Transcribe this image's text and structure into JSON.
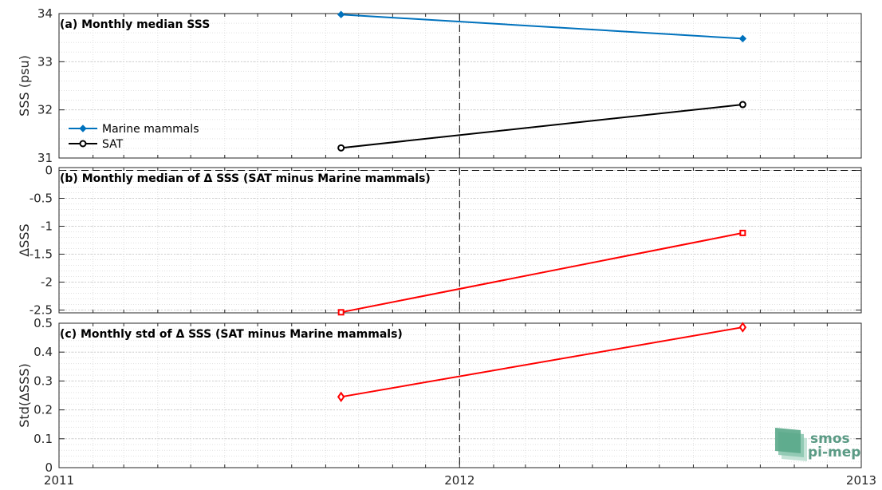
{
  "chart_data": [
    {
      "type": "line",
      "title": "(a) Monthly median SSS",
      "ylabel": "SSS (psu)",
      "ylim": [
        31,
        34
      ],
      "yticks": [
        31,
        32,
        33,
        34
      ],
      "ytick_labels": [
        "31",
        "32",
        "33",
        "34"
      ],
      "xlim": [
        "2011-01-01",
        "2013-01-01"
      ],
      "grid": true,
      "legend_position": "bottom-left",
      "series": [
        {
          "name": "Marine mammals",
          "color": "#0072BD",
          "marker": "diamond-filled",
          "x": [
            "2011-09-15",
            "2012-09-15"
          ],
          "y": [
            33.98,
            33.48
          ]
        },
        {
          "name": "SAT",
          "color": "#000000",
          "marker": "circle",
          "x": [
            "2011-09-15",
            "2012-09-15"
          ],
          "y": [
            31.21,
            32.11
          ]
        }
      ]
    },
    {
      "type": "line",
      "title": "(b) Monthly median of Δ SSS (SAT minus Marine mammals)",
      "ylabel": "ΔSSS",
      "ylim": [
        -2.55,
        0.05
      ],
      "yticks": [
        -2.5,
        -2,
        -1.5,
        -1,
        -0.5,
        0
      ],
      "ytick_labels": [
        "-2.5",
        "-2",
        "-1.5",
        "-1",
        "-0.5",
        "0"
      ],
      "xlim": [
        "2011-01-01",
        "2013-01-01"
      ],
      "grid": true,
      "reference_line_y": 0,
      "series": [
        {
          "color": "#FF0000",
          "marker": "square",
          "x": [
            "2011-09-15",
            "2012-09-15"
          ],
          "y": [
            -2.54,
            -1.12
          ]
        }
      ]
    },
    {
      "type": "line",
      "title": "(c) Monthly std of Δ SSS (SAT minus Marine mammals)",
      "ylabel": "Std(ΔSSS)",
      "ylim": [
        0,
        0.5
      ],
      "yticks": [
        0,
        0.1,
        0.2,
        0.3,
        0.4,
        0.5
      ],
      "ytick_labels": [
        "0",
        "0.1",
        "0.2",
        "0.3",
        "0.4",
        "0.5"
      ],
      "xlim": [
        "2011-01-01",
        "2013-01-01"
      ],
      "xtick_labels": [
        "2011",
        "2012",
        "2013"
      ],
      "grid": true,
      "series": [
        {
          "color": "#FF0000",
          "marker": "diamond",
          "x": [
            "2011-09-15",
            "2012-09-15"
          ],
          "y": [
            0.245,
            0.486
          ]
        }
      ]
    }
  ],
  "vertical_marker_x": "2012-01-01",
  "logo": {
    "line1": "smos",
    "line2": "pi-mep",
    "color": "#5a9a84"
  }
}
